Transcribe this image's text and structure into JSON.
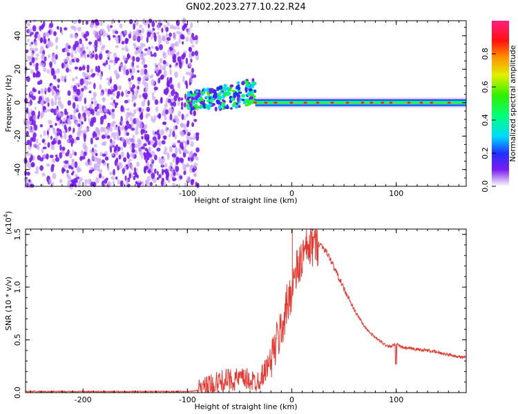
{
  "title": "GN02.2023.277.10.22.R24",
  "colors": {
    "spectrogram_noise": "#7a1cf0",
    "spectrogram_noise_light": "#c9a5f5",
    "snr_line": "#e8362e",
    "axis": "#000000"
  },
  "chart_data": [
    {
      "type": "heatmap",
      "title": "GN02.2023.277.10.22.R24",
      "xlabel": "Height of straight line (km)",
      "ylabel": "Frequency (Hz)",
      "xlim": [
        -255,
        167
      ],
      "ylim": [
        -50,
        49
      ],
      "x_ticks": [
        -200,
        -100,
        0,
        100
      ],
      "x_tick_labels": [
        "-200",
        "-100",
        "0",
        "100"
      ],
      "y_ticks": [
        40,
        20,
        0,
        -20,
        -40
      ],
      "y_tick_labels": [
        "40",
        "20",
        "0",
        "-20",
        "-40"
      ],
      "colorbar": {
        "label": "Normalized spectral amplitude",
        "range": [
          0.0,
          1.0
        ],
        "ticks": [
          0.0,
          0.2,
          0.4,
          0.6,
          0.8
        ],
        "tick_labels": [
          "0.0",
          "0.2",
          "0.4",
          "0.6",
          "0.8"
        ]
      },
      "regions": [
        {
          "x_range": [
            -255,
            -90
          ],
          "freq_range": [
            -50,
            49
          ],
          "amplitude": 0.1
        },
        {
          "x_range": [
            -100,
            -35
          ],
          "freq_range": [
            -5,
            18
          ],
          "amplitude": 0.5
        },
        {
          "x_range": [
            -35,
            167
          ],
          "freq_range": [
            -2,
            2
          ],
          "amplitude": 0.75
        }
      ],
      "grid": false
    },
    {
      "type": "line",
      "xlabel": "Height of straight line (km)",
      "ylabel": "SNR (10 * v/v)",
      "yscale_label": "(x10^4)",
      "yscale_base": "(x10",
      "yscale_exp": "4",
      "yscale_close": ")",
      "xlim": [
        -255,
        167
      ],
      "ylim": [
        0.0,
        1.55
      ],
      "x_ticks": [
        -200,
        -100,
        0,
        100
      ],
      "x_tick_labels": [
        "-200",
        "-100",
        "0",
        "100"
      ],
      "y_ticks": [
        0.0,
        0.5,
        1.0,
        1.5
      ],
      "y_tick_labels": [
        "0.0",
        "0.5",
        "1.0",
        "1.5"
      ],
      "series": [
        {
          "x": [
            -255,
            -200,
            -150,
            -100,
            -90,
            -80,
            -70,
            -60,
            -50,
            -40,
            -35,
            -30,
            -25,
            -20,
            -15,
            -10,
            -5,
            0,
            5,
            10,
            15,
            20,
            25,
            30,
            35,
            40,
            50,
            60,
            70,
            80,
            90,
            95,
            100,
            105,
            110,
            120,
            130,
            140,
            150,
            160,
            167
          ],
          "values": [
            0.01,
            0.01,
            0.01,
            0.01,
            0.02,
            0.05,
            0.1,
            0.12,
            0.13,
            0.12,
            0.1,
            0.14,
            0.22,
            0.32,
            0.45,
            0.6,
            0.8,
            1.0,
            1.15,
            1.28,
            1.36,
            1.4,
            1.42,
            1.38,
            1.3,
            1.2,
            0.98,
            0.78,
            0.62,
            0.52,
            0.45,
            0.44,
            0.46,
            0.43,
            0.42,
            0.41,
            0.4,
            0.38,
            0.36,
            0.34,
            0.33
          ]
        }
      ],
      "annotations": [
        {
          "x": 0.5,
          "y": 1.55,
          "label": "spike"
        },
        {
          "x": 100,
          "y": 0.28,
          "label": "dip"
        }
      ],
      "grid": false
    }
  ]
}
